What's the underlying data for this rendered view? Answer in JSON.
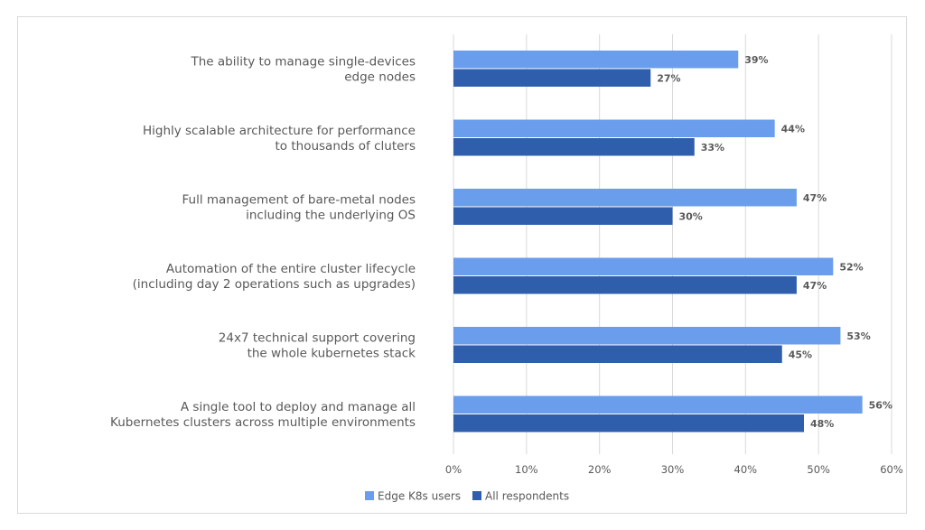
{
  "chart_data": {
    "type": "bar",
    "orientation": "horizontal",
    "categories": [
      [
        "The ability to manage single-devices",
        "edge nodes"
      ],
      [
        "Highly scalable architecture for performance",
        "to thousands of cluters"
      ],
      [
        "Full management of bare-metal nodes",
        "including the underlying OS"
      ],
      [
        "Automation of the entire cluster lifecycle",
        "(including day 2 operations such as upgrades)"
      ],
      [
        "24x7 technical support covering",
        "the whole kubernetes stack"
      ],
      [
        "A single tool to deploy and manage all",
        "Kubernetes clusters across multiple environments"
      ]
    ],
    "series": [
      {
        "name": "Edge K8s users",
        "color": "#6b9ded",
        "values": [
          39,
          44,
          47,
          52,
          53,
          56
        ],
        "labels": [
          "39%",
          "44%",
          "47%",
          "52%",
          "53%",
          "56%"
        ]
      },
      {
        "name": "All respondents",
        "color": "#2e5eac",
        "values": [
          27,
          33,
          30,
          47,
          45,
          48
        ],
        "labels": [
          "27%",
          "33%",
          "30%",
          "47%",
          "45%",
          "48%"
        ]
      }
    ],
    "xlim": [
      0,
      60
    ],
    "xticks": [
      0,
      10,
      20,
      30,
      40,
      50,
      60
    ],
    "xtick_labels": [
      "0%",
      "10%",
      "20%",
      "30%",
      "40%",
      "50%",
      "60%"
    ],
    "grid": "vertical",
    "legend_position": "bottom"
  }
}
